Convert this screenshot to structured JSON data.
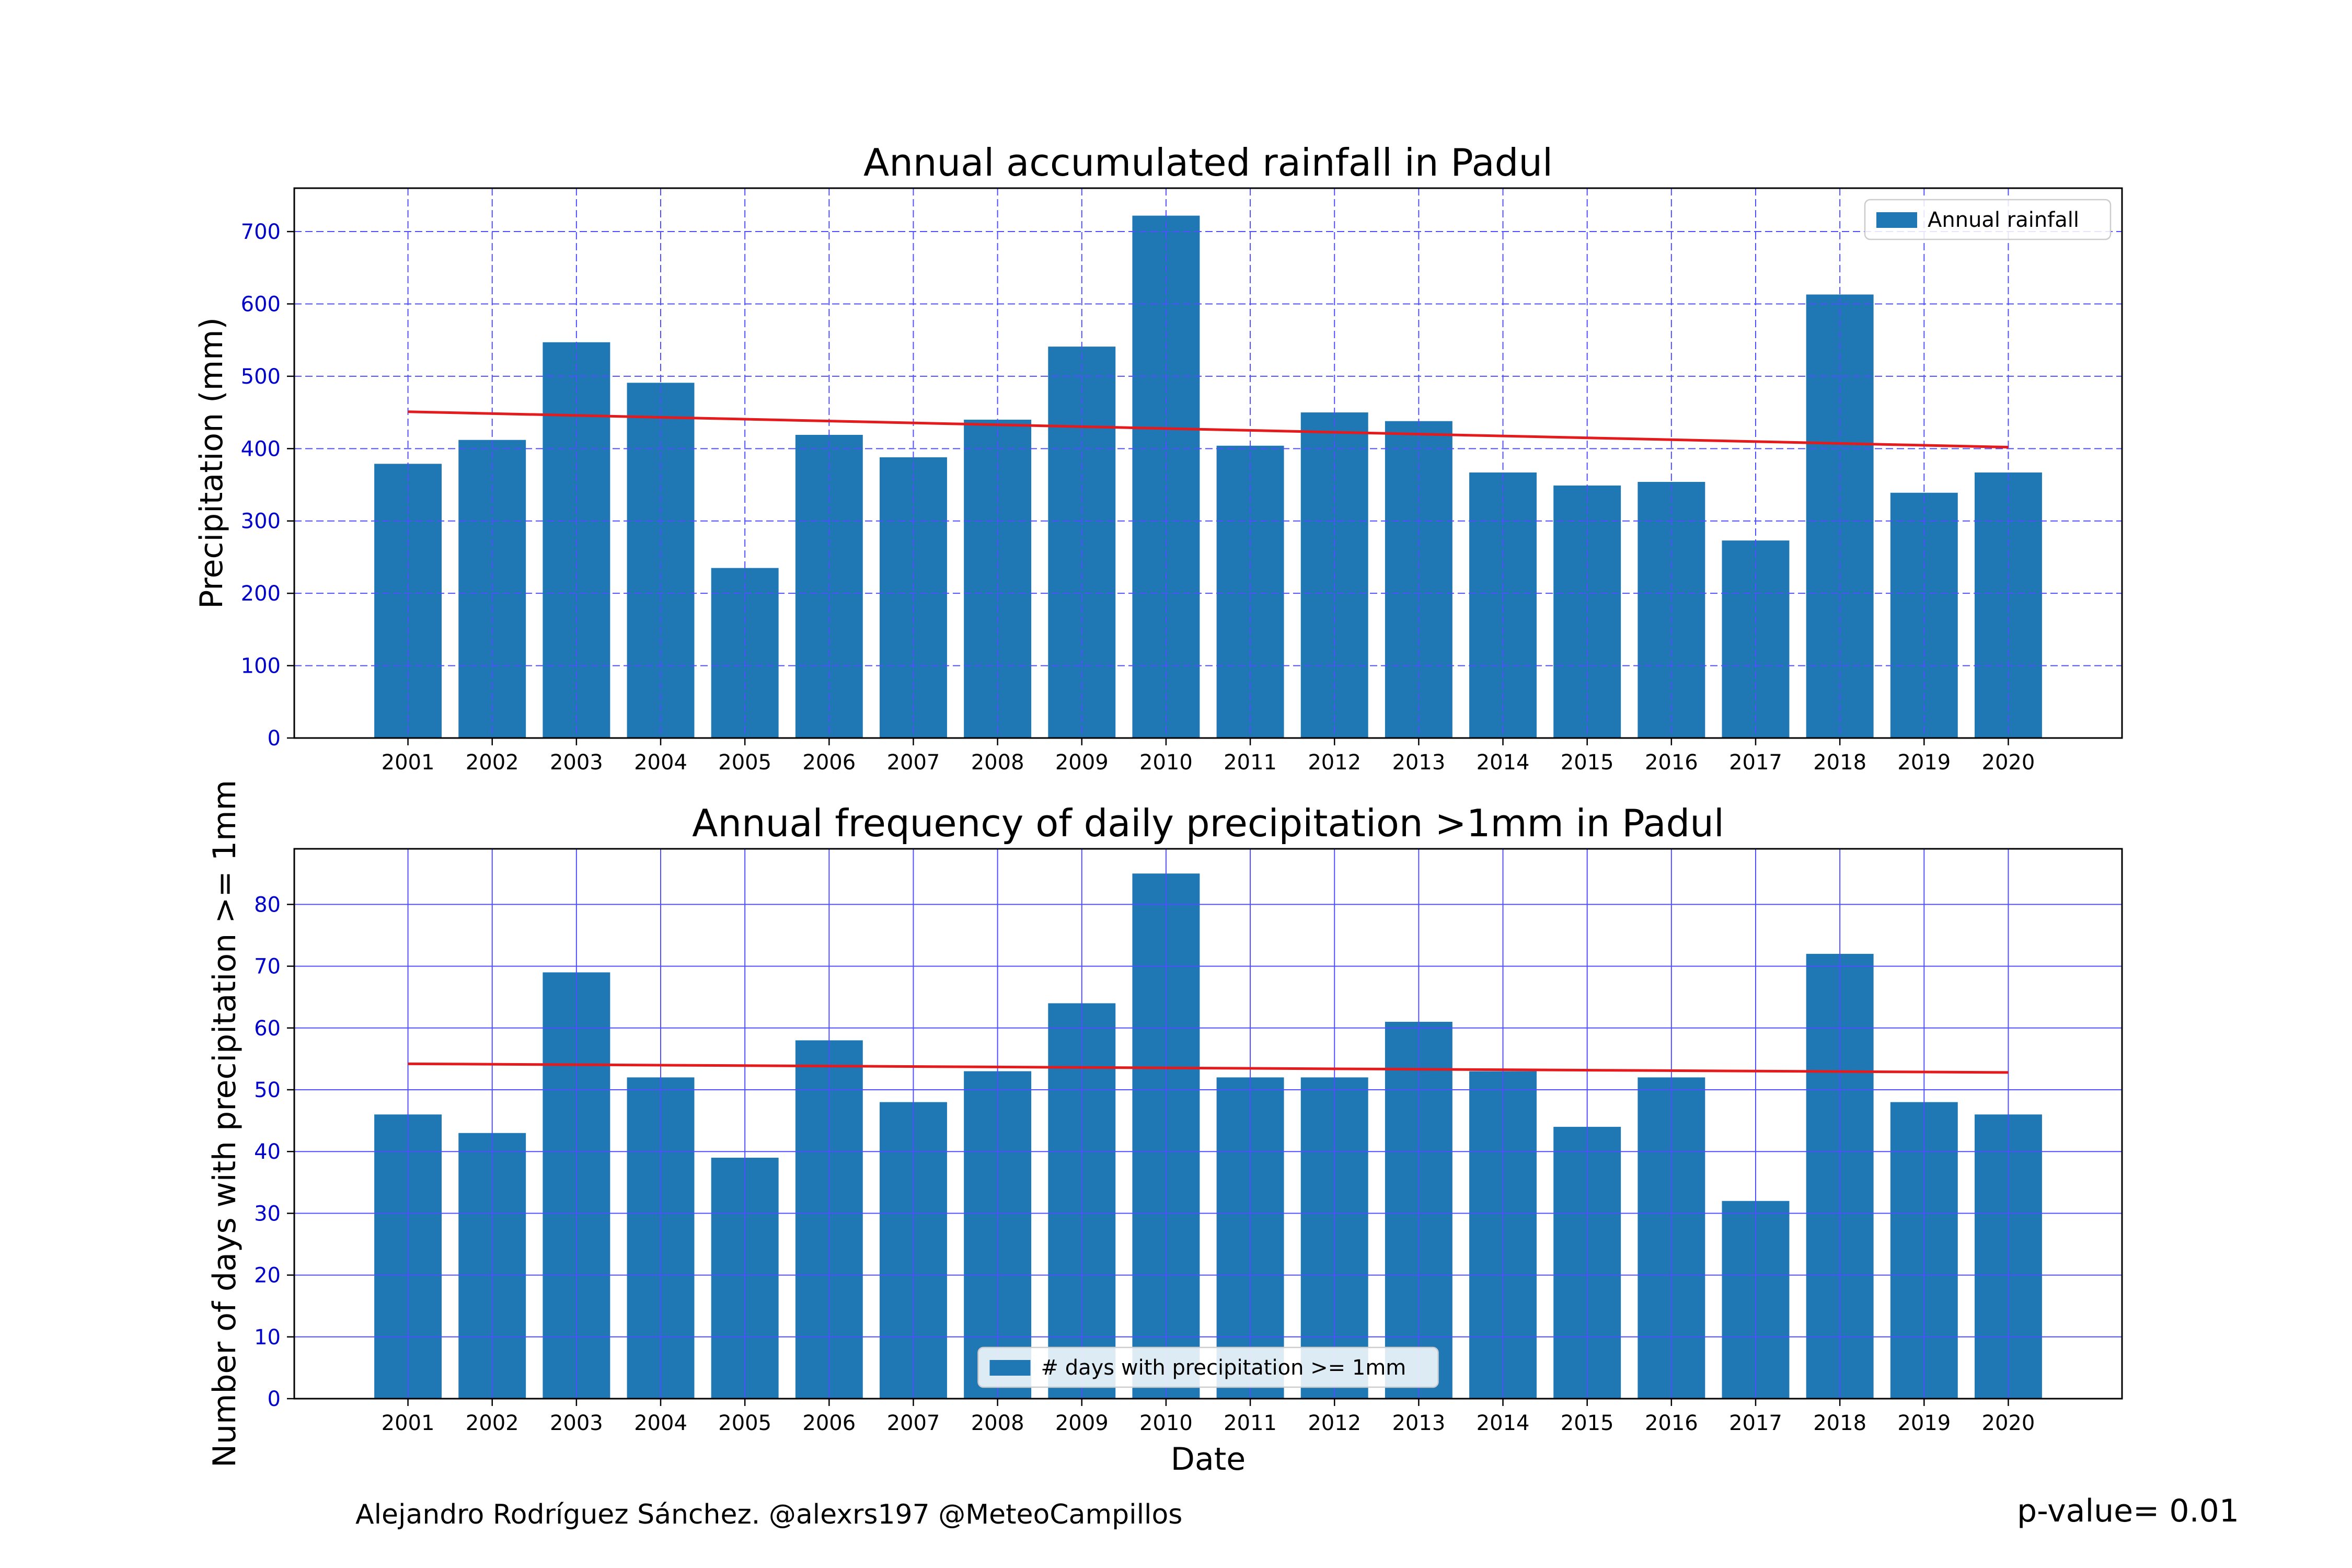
{
  "chart_data": [
    {
      "type": "bar",
      "title": "Annual accumulated rainfall in Padul",
      "xlabel": "",
      "ylabel": "Precipitation (mm)",
      "ylim": [
        0,
        760
      ],
      "yticks": [
        0,
        100,
        200,
        300,
        400,
        500,
        600,
        700
      ],
      "categories": [
        "2001",
        "2002",
        "2003",
        "2004",
        "2005",
        "2006",
        "2007",
        "2008",
        "2009",
        "2010",
        "2011",
        "2012",
        "2013",
        "2014",
        "2015",
        "2016",
        "2017",
        "2018",
        "2019",
        "2020"
      ],
      "series": [
        {
          "name": "Annual rainfall",
          "color": "#1f77b4",
          "values": [
            379,
            412,
            547,
            491,
            235,
            419,
            388,
            440,
            541,
            722,
            404,
            450,
            438,
            367,
            349,
            354,
            273,
            613,
            339,
            367
          ]
        }
      ],
      "trend": {
        "color": "#e41a1c",
        "start": 451,
        "end": 402
      },
      "grid": {
        "on": true,
        "style": "dashed",
        "color": "#4f4fff"
      },
      "legend_position": "top-right"
    },
    {
      "type": "bar",
      "title": "Annual frequency of daily precipitation >1mm in Padul",
      "xlabel": "Date",
      "ylabel": "Number of days with precipitation >= 1mm",
      "ylim": [
        0,
        89
      ],
      "yticks": [
        0,
        10,
        20,
        30,
        40,
        50,
        60,
        70,
        80
      ],
      "categories": [
        "2001",
        "2002",
        "2003",
        "2004",
        "2005",
        "2006",
        "2007",
        "2008",
        "2009",
        "2010",
        "2011",
        "2012",
        "2013",
        "2014",
        "2015",
        "2016",
        "2017",
        "2018",
        "2019",
        "2020"
      ],
      "series": [
        {
          "name": "# days with precipitation >= 1mm",
          "color": "#1f77b4",
          "values": [
            46,
            43,
            69,
            52,
            39,
            58,
            48,
            53,
            64,
            85,
            52,
            52,
            61,
            53,
            44,
            52,
            32,
            72,
            48,
            46
          ]
        }
      ],
      "trend": {
        "color": "#e41a1c",
        "start": 54.2,
        "end": 52.8
      },
      "grid": {
        "on": true,
        "style": "solid",
        "color": "#4f4fff"
      },
      "legend_position": "bottom-center"
    }
  ],
  "footer": {
    "credit": "Alejandro Rodríguez Sánchez. @alexrs197 @MeteoCampillos",
    "pvalue": "p-value= 0.01"
  }
}
